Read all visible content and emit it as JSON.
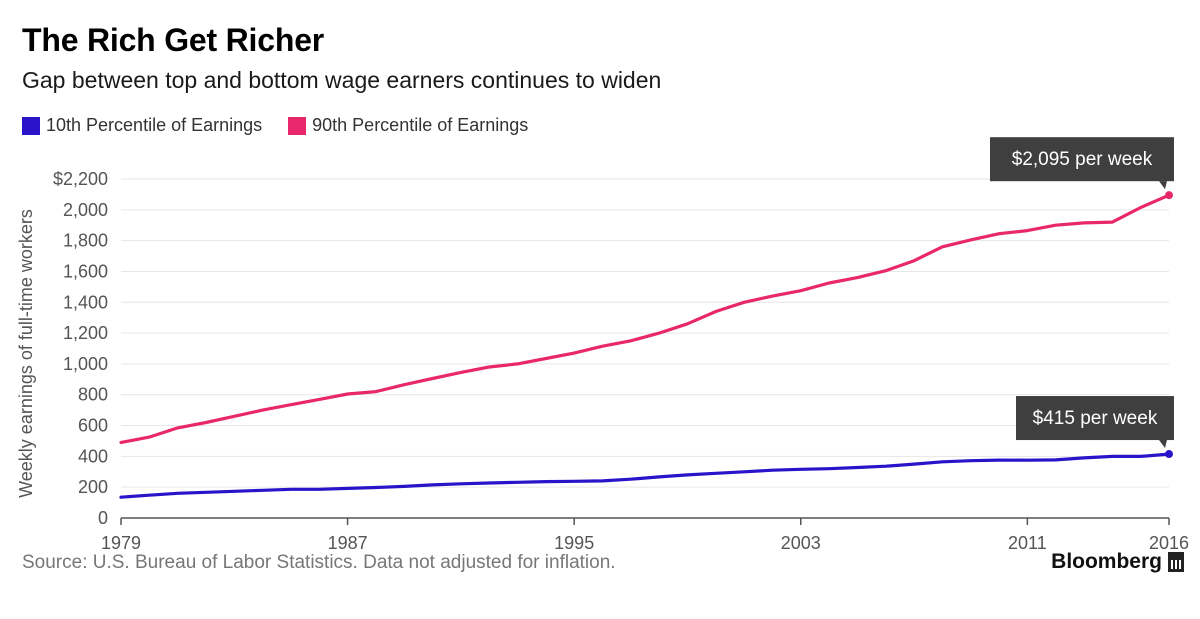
{
  "header": {
    "title": "The Rich Get Richer",
    "subtitle": "Gap between top and bottom wage earners continues to widen"
  },
  "footer": {
    "source": "Source: U.S. Bureau of Labor Statistics. Data not adjusted for inflation.",
    "logo": "Bloomberg"
  },
  "colors": {
    "series_10th": "#2a14c9",
    "series_90th": "#e8286a",
    "callout_bg": "#3f3f3f",
    "grid": "#e6e6e6",
    "axis_text": "#555555"
  },
  "chart_data": {
    "type": "line",
    "title": "The Rich Get Richer",
    "subtitle": "Gap between top and bottom wage earners continues to widen",
    "xlabel": "",
    "ylabel": "Weekly earnings of full-time workers",
    "xlim": [
      1979,
      2016
    ],
    "ylim": [
      0,
      2200
    ],
    "x_ticks": [
      1979,
      1987,
      1995,
      2003,
      2011,
      2016
    ],
    "y_ticks": [
      0,
      200,
      400,
      600,
      800,
      1000,
      1200,
      1400,
      1600,
      1800,
      2000,
      2200
    ],
    "y_tick_labels": [
      "0",
      "200",
      "400",
      "600",
      "800",
      "1,000",
      "1,200",
      "1,400",
      "1,600",
      "1,800",
      "2,000",
      "$2,200"
    ],
    "grid": true,
    "legend_position": "top-left",
    "x": [
      1979,
      1980,
      1981,
      1982,
      1983,
      1984,
      1985,
      1986,
      1987,
      1988,
      1989,
      1990,
      1991,
      1992,
      1993,
      1994,
      1995,
      1996,
      1997,
      1998,
      1999,
      2000,
      2001,
      2002,
      2003,
      2004,
      2005,
      2006,
      2007,
      2008,
      2009,
      2010,
      2011,
      2012,
      2013,
      2014,
      2015,
      2016
    ],
    "series": [
      {
        "name": "10th Percentile of Earnings",
        "color": "#2a14c9",
        "values": [
          135,
          148,
          160,
          167,
          173,
          180,
          186,
          186,
          192,
          198,
          205,
          215,
          222,
          227,
          232,
          236,
          238,
          241,
          252,
          267,
          280,
          290,
          300,
          310,
          316,
          320,
          328,
          336,
          350,
          365,
          372,
          376,
          375,
          377,
          390,
          400,
          400,
          415
        ]
      },
      {
        "name": "90th Percentile of Earnings",
        "color": "#e8286a",
        "values": [
          490,
          525,
          585,
          620,
          660,
          700,
          735,
          770,
          805,
          820,
          865,
          905,
          945,
          980,
          1000,
          1035,
          1070,
          1115,
          1150,
          1200,
          1260,
          1340,
          1400,
          1440,
          1475,
          1525,
          1560,
          1605,
          1670,
          1760,
          1805,
          1845,
          1865,
          1900,
          1915,
          1920,
          2015,
          2095
        ]
      }
    ],
    "annotations": [
      {
        "series": 1,
        "x": 2016,
        "value": 2095,
        "text": "$2,095 per week"
      },
      {
        "series": 0,
        "x": 2016,
        "value": 415,
        "text": "$415 per week"
      }
    ]
  }
}
